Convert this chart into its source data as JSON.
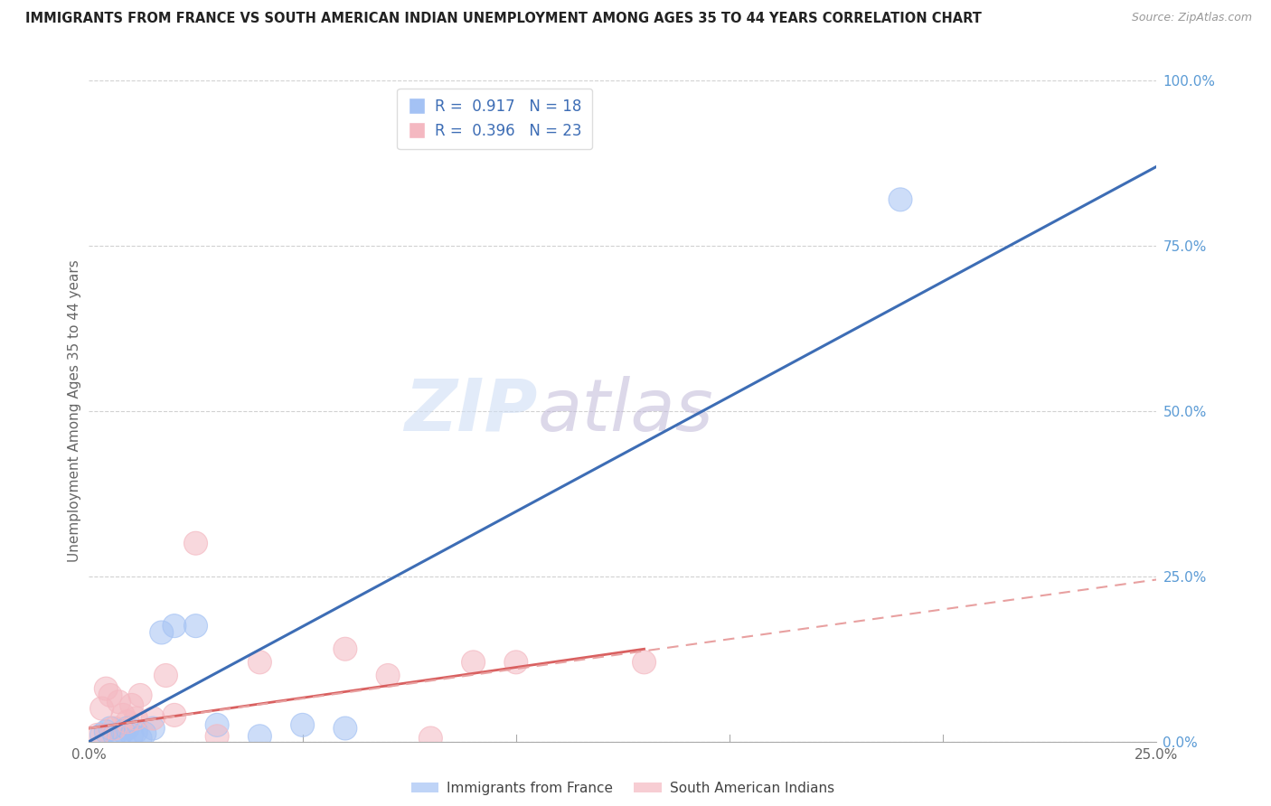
{
  "title": "IMMIGRANTS FROM FRANCE VS SOUTH AMERICAN INDIAN UNEMPLOYMENT AMONG AGES 35 TO 44 YEARS CORRELATION CHART",
  "source": "Source: ZipAtlas.com",
  "ylabel": "Unemployment Among Ages 35 to 44 years",
  "ytick_labels": [
    "0.0%",
    "25.0%",
    "50.0%",
    "75.0%",
    "100.0%"
  ],
  "ytick_values": [
    0.0,
    0.25,
    0.5,
    0.75,
    1.0
  ],
  "xmin": 0.0,
  "xmax": 0.25,
  "ymin": 0.0,
  "ymax": 1.0,
  "watermark_zip": "ZIP",
  "watermark_atlas": "atlas",
  "blue_color": "#a4c2f4",
  "pink_color": "#f4b8c1",
  "blue_line_color": "#3d6db5",
  "pink_line_color": "#d96060",
  "pink_dashed_color": "#e8a0a0",
  "france_scatter": [
    [
      0.003,
      0.01
    ],
    [
      0.004,
      0.015
    ],
    [
      0.005,
      0.02
    ],
    [
      0.006,
      0.01
    ],
    [
      0.007,
      0.008
    ],
    [
      0.008,
      0.015
    ],
    [
      0.009,
      0.02
    ],
    [
      0.01,
      0.01
    ],
    [
      0.011,
      0.015
    ],
    [
      0.012,
      0.005
    ],
    [
      0.013,
      0.012
    ],
    [
      0.015,
      0.02
    ],
    [
      0.017,
      0.165
    ],
    [
      0.02,
      0.175
    ],
    [
      0.025,
      0.175
    ],
    [
      0.03,
      0.025
    ],
    [
      0.04,
      0.008
    ],
    [
      0.05,
      0.025
    ],
    [
      0.06,
      0.02
    ],
    [
      0.19,
      0.82
    ]
  ],
  "india_scatter": [
    [
      0.002,
      0.01
    ],
    [
      0.003,
      0.05
    ],
    [
      0.004,
      0.08
    ],
    [
      0.005,
      0.07
    ],
    [
      0.006,
      0.02
    ],
    [
      0.007,
      0.06
    ],
    [
      0.008,
      0.04
    ],
    [
      0.009,
      0.03
    ],
    [
      0.01,
      0.055
    ],
    [
      0.011,
      0.035
    ],
    [
      0.012,
      0.07
    ],
    [
      0.015,
      0.035
    ],
    [
      0.018,
      0.1
    ],
    [
      0.02,
      0.04
    ],
    [
      0.025,
      0.3
    ],
    [
      0.03,
      0.008
    ],
    [
      0.04,
      0.12
    ],
    [
      0.06,
      0.14
    ],
    [
      0.07,
      0.1
    ],
    [
      0.08,
      0.005
    ],
    [
      0.09,
      0.12
    ],
    [
      0.1,
      0.12
    ],
    [
      0.13,
      0.12
    ]
  ],
  "france_line_x": [
    0.0,
    0.25
  ],
  "france_line_y": [
    0.0,
    0.87
  ],
  "india_solid_line_x": [
    0.0,
    0.13
  ],
  "india_solid_line_y": [
    0.02,
    0.14
  ],
  "india_dashed_line_x": [
    0.0,
    0.25
  ],
  "india_dashed_line_y": [
    0.02,
    0.245
  ],
  "legend_labels": [
    "Immigrants from France",
    "South American Indians"
  ],
  "background_color": "#ffffff",
  "grid_color": "#cccccc",
  "title_color": "#222222",
  "axis_label_color": "#666666",
  "right_yaxis_color": "#5b9bd5",
  "xtick_minor": [
    0.05,
    0.1,
    0.15,
    0.2
  ]
}
